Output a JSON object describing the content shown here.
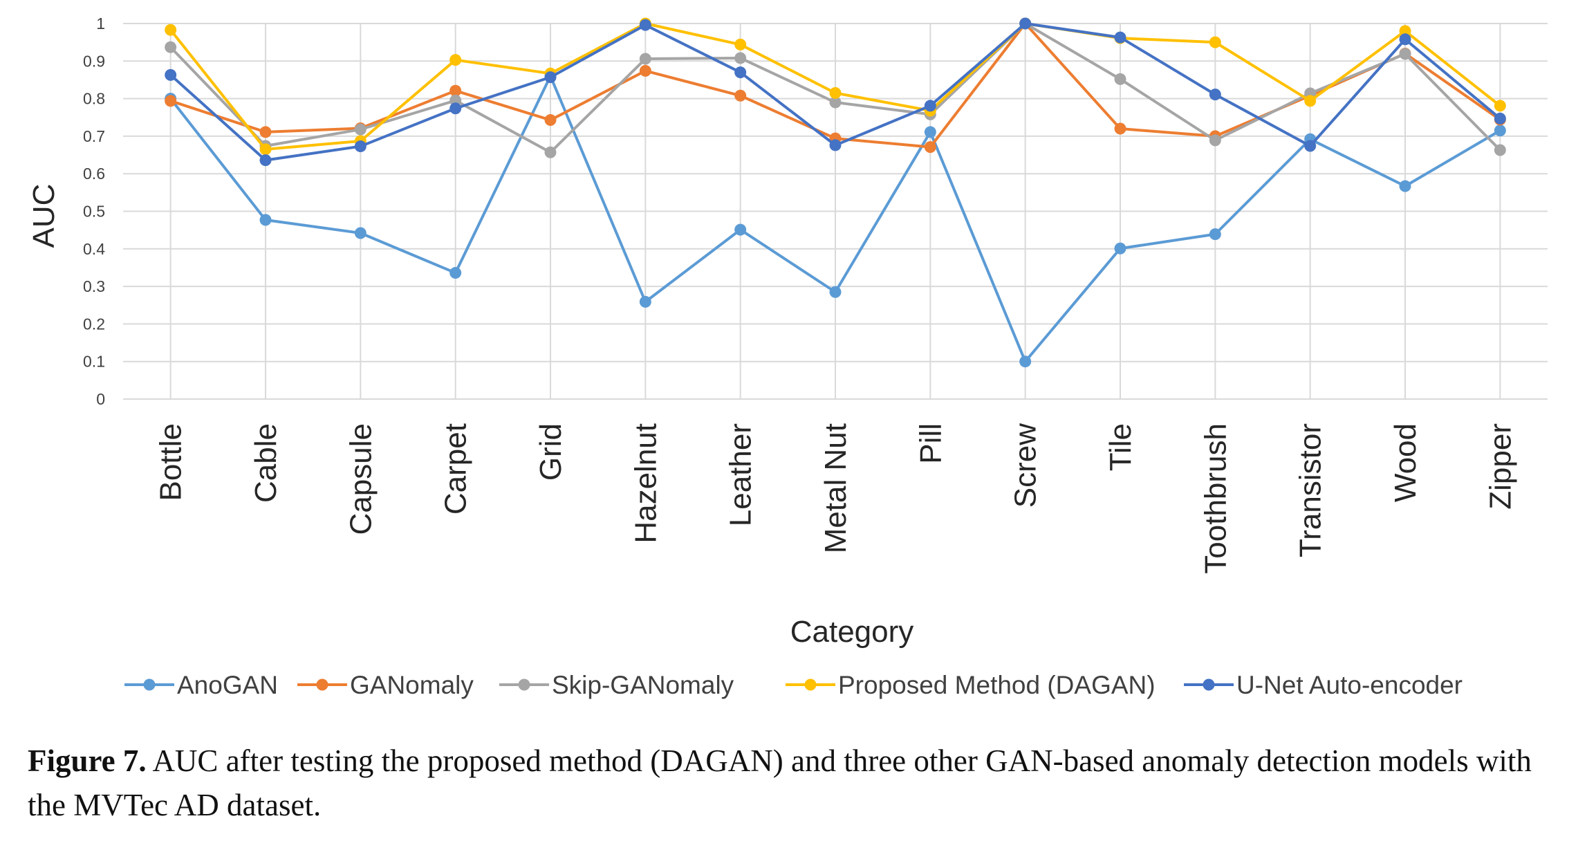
{
  "chart_data": {
    "type": "line",
    "xlabel": "Category",
    "ylabel": "AUC",
    "ylim": [
      0,
      1
    ],
    "yticks": [
      "0",
      "0.1",
      "0.2",
      "0.3",
      "0.4",
      "0.5",
      "0.6",
      "0.7",
      "0.8",
      "0.9",
      "1"
    ],
    "grid": true,
    "legend_position": "bottom",
    "categories": [
      "Bottle",
      "Cable",
      "Capsule",
      "Carpet",
      "Grid",
      "Hazelnut",
      "Leather",
      "Metal Nut",
      "Pill",
      "Screw",
      "Tile",
      "Toothbrush",
      "Transistor",
      "Wood",
      "Zipper"
    ],
    "series": [
      {
        "name": "AnoGAN",
        "color": "#5B9BD5",
        "values": [
          0.8,
          0.477,
          0.442,
          0.336,
          0.86,
          0.259,
          0.451,
          0.285,
          0.711,
          0.1,
          0.401,
          0.439,
          0.692,
          0.567,
          0.715
        ]
      },
      {
        "name": "GANomaly",
        "color": "#ED7D31",
        "values": [
          0.794,
          0.711,
          0.721,
          0.821,
          0.743,
          0.874,
          0.808,
          0.694,
          0.671,
          1.0,
          0.72,
          0.7,
          0.808,
          0.92,
          0.744
        ]
      },
      {
        "name": "Skip-GANomaly",
        "color": "#A5A5A5",
        "values": [
          0.937,
          0.674,
          0.718,
          0.795,
          0.657,
          0.906,
          0.908,
          0.79,
          0.758,
          1.0,
          0.852,
          0.689,
          0.814,
          0.919,
          0.663
        ]
      },
      {
        "name": "Proposed Method (DAGAN)",
        "color": "#FFC000",
        "values": [
          0.983,
          0.665,
          0.687,
          0.903,
          0.867,
          1.0,
          0.944,
          0.815,
          0.768,
          1.0,
          0.961,
          0.95,
          0.794,
          0.98,
          0.781
        ]
      },
      {
        "name": "U-Net Auto-encoder",
        "color": "#4472C4",
        "values": [
          0.863,
          0.636,
          0.673,
          0.774,
          0.857,
          0.996,
          0.87,
          0.676,
          0.781,
          1.0,
          0.963,
          0.811,
          0.674,
          0.958,
          0.747
        ]
      }
    ]
  },
  "caption": {
    "label": "Figure 7.",
    "text": "AUC after testing the proposed method (DAGAN) and three other GAN-based anomaly detection models with the MVTec AD dataset."
  }
}
